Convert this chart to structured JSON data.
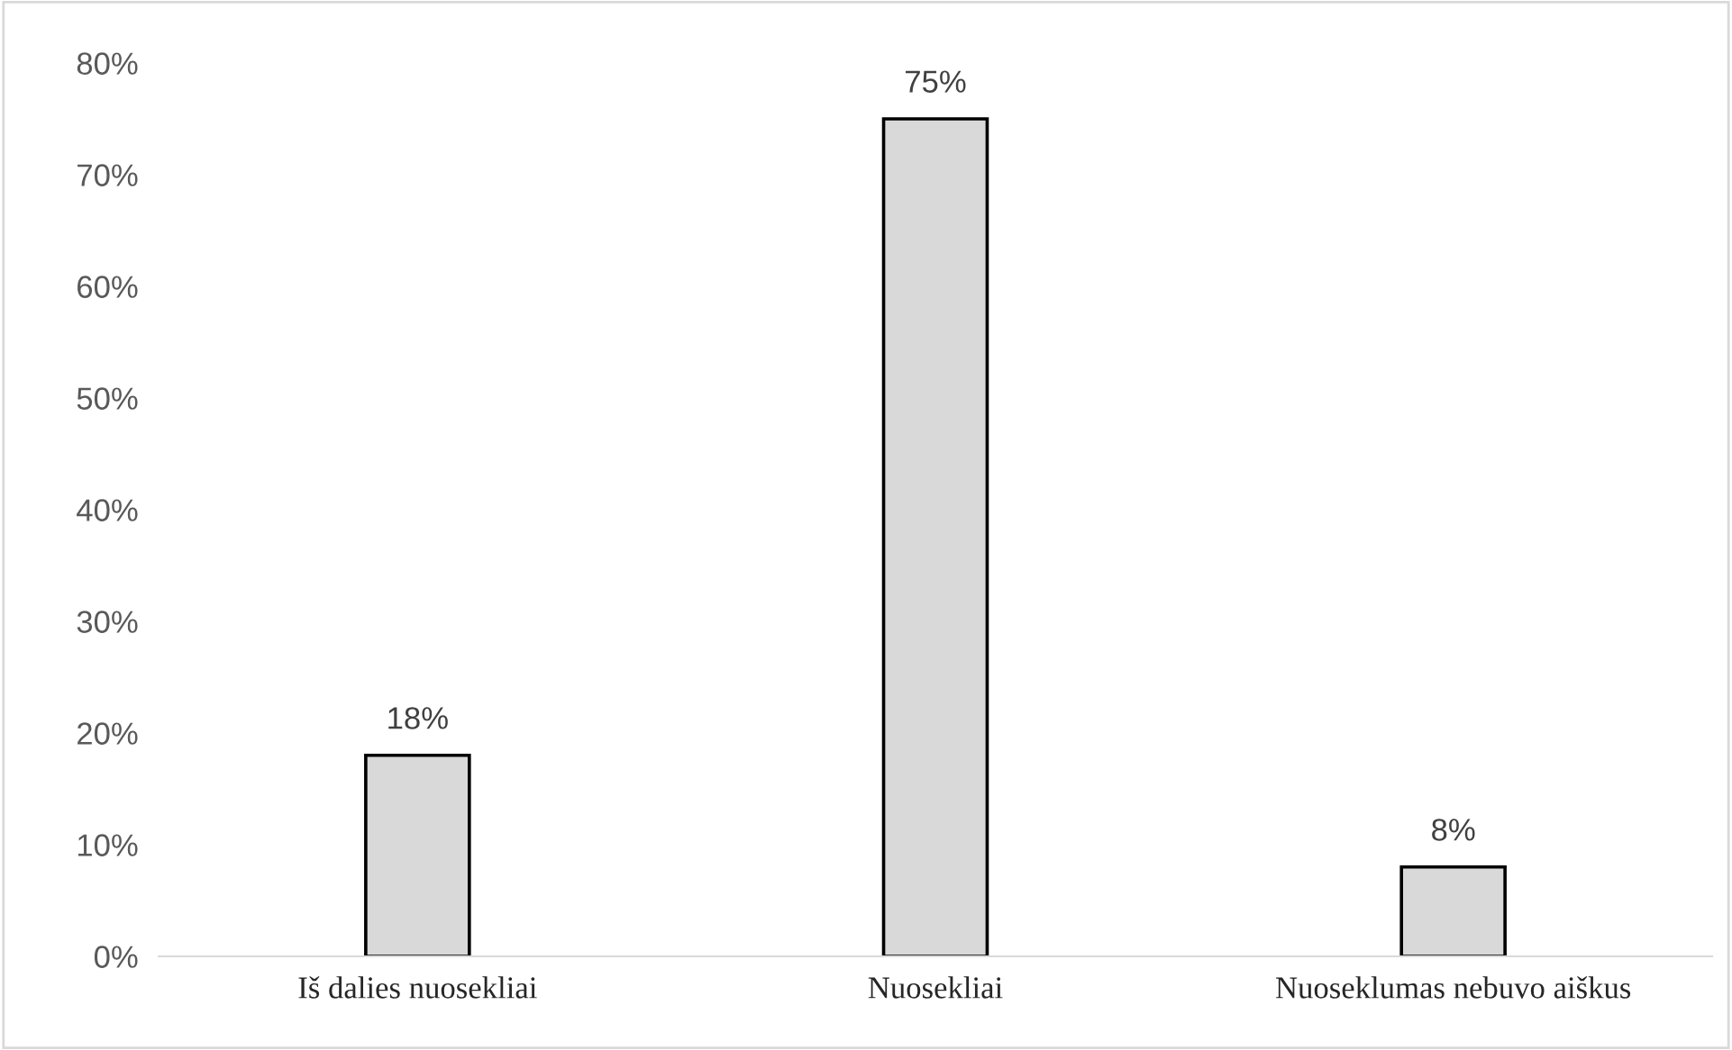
{
  "chart_data": {
    "type": "bar",
    "categories": [
      "Iš dalies nuosekliai",
      "Nuosekliai",
      "Nuoseklumas nebuvo aiškus"
    ],
    "values": [
      18,
      75,
      8
    ],
    "value_labels": [
      "18%",
      "75%",
      "8%"
    ],
    "color": "#d9d9d9",
    "ylim": [
      0,
      80
    ],
    "yticks": [
      {
        "value": 0,
        "label": "0%"
      },
      {
        "value": 10,
        "label": "10%"
      },
      {
        "value": 20,
        "label": "20%"
      },
      {
        "value": 30,
        "label": "30%"
      },
      {
        "value": 40,
        "label": "40%"
      },
      {
        "value": 50,
        "label": "50%"
      },
      {
        "value": 60,
        "label": "60%"
      },
      {
        "value": 70,
        "label": "70%"
      },
      {
        "value": 80,
        "label": "80%"
      }
    ],
    "grid": false,
    "legend": false
  }
}
